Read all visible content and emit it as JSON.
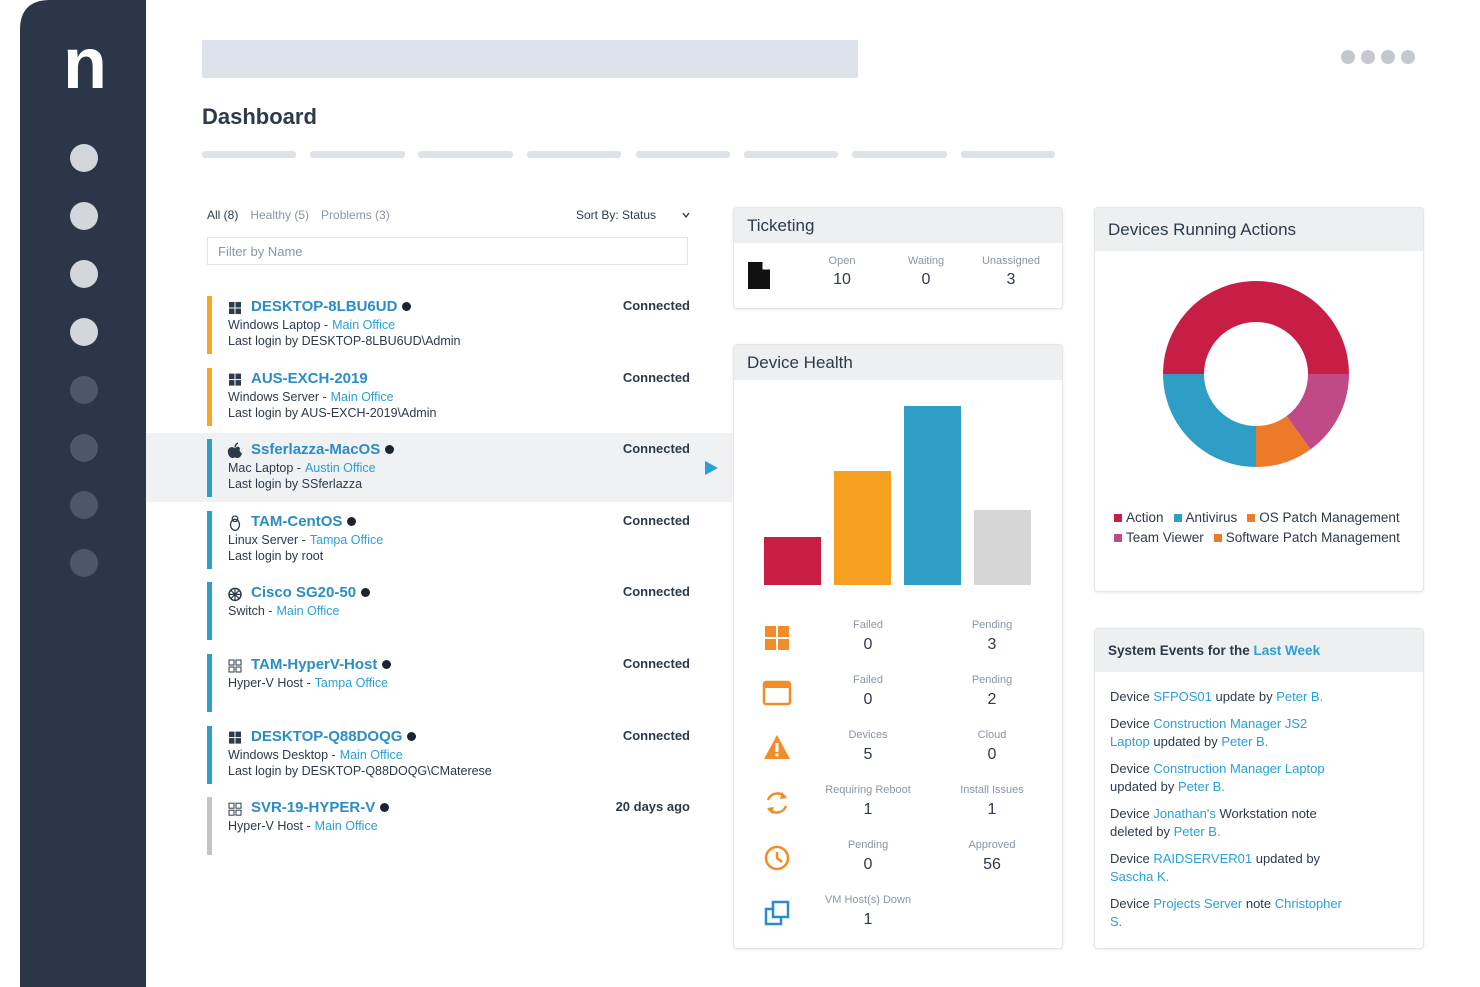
{
  "logo": "n",
  "header": {
    "title": "Dashboard"
  },
  "devices": {
    "filters": [
      "All (8)",
      "Healthy (5)",
      "Problems (3)"
    ],
    "sort": "Sort By: Status",
    "filter_placeholder": "Filter by Name",
    "items": [
      {
        "name": "DESKTOP-8LBU6UD",
        "type": "Windows Laptop -",
        "location": "Main Office",
        "login": "Last login by DESKTOP-8LBU6UD\\Admin",
        "status": "Connected",
        "color": "#f5a623"
      },
      {
        "name": "AUS-EXCH-2019",
        "type": "Windows Server -",
        "location": "Main Office",
        "login": "Last login by AUS-EXCH-2019\\Admin",
        "status": "Connected",
        "color": "#f5a623"
      },
      {
        "name": "Ssferlazza-MacOS",
        "type": "Mac Laptop -",
        "location": "Austin Office",
        "login": "Last login by SSferlazza",
        "status": "Connected",
        "color": "#2e9ec6"
      },
      {
        "name": "TAM-CentOS",
        "type": "Linux Server -",
        "location": "Tampa Office",
        "login": "Last login by root",
        "status": "Connected",
        "color": "#2e9ec6"
      },
      {
        "name": "Cisco SG20-50",
        "type": "Switch -",
        "location": "Main Office",
        "status": "Connected",
        "color": "#2e9ec6"
      },
      {
        "name": "TAM-HyperV-Host",
        "type": "Hyper-V Host -",
        "location": "Tampa Office",
        "status": "Connected",
        "color": "#2e9ec6"
      },
      {
        "name": "DESKTOP-Q88DOQG",
        "type": "Windows Desktop -",
        "location": "Main Office",
        "login": "Last login by DESKTOP-Q88DOQG\\CMaterese",
        "status": "Connected",
        "color": "#2e9ec6"
      },
      {
        "name": "SVR-19-HYPER-V",
        "type": "Hyper-V Host -",
        "location": "Main Office",
        "status": "20 days ago",
        "color": "#c4c4c4"
      }
    ]
  },
  "ticketing": {
    "title": "Ticketing",
    "columns": [
      {
        "label": "Open",
        "value": 10
      },
      {
        "label": "Waiting",
        "value": 0
      },
      {
        "label": "Unassigned",
        "value": 3
      }
    ]
  },
  "device_health": {
    "title": "Device Health",
    "chart": {
      "type": "bar",
      "values": [
        48,
        114,
        179,
        75
      ],
      "colors": [
        "#c81e45",
        "#f5a021",
        "#2e9ec6",
        "#d6d6d6"
      ],
      "ylim": [
        0,
        180
      ]
    },
    "rows": [
      [
        {
          "label": "Failed",
          "value": 0
        },
        {
          "label": "Pending",
          "value": 3
        }
      ],
      [
        {
          "label": "Failed",
          "value": 0
        },
        {
          "label": "Pending",
          "value": 2
        }
      ],
      [
        {
          "label": "Devices",
          "value": 5
        },
        {
          "label": "Cloud",
          "value": 0
        }
      ],
      [
        {
          "label": "Requiring Reboot",
          "value": 1
        },
        {
          "label": "Install Issues",
          "value": 1
        }
      ],
      [
        {
          "label": "Pending",
          "value": 0
        },
        {
          "label": "Approved",
          "value": 56
        }
      ],
      [
        {
          "label": "VM Host(s) Down",
          "value": 1
        }
      ]
    ]
  },
  "devices_running_actions": {
    "title": "Devices Running Actions",
    "chart": {
      "type": "donut",
      "labels": [
        "Action",
        "Antivirus",
        "OS Patch Management",
        "Team Viewer",
        "Software Patch Management"
      ],
      "colors": [
        "#c81e45",
        "#2e9ec6",
        "#ec7a28",
        "#c04a86",
        "#ec7a28"
      ],
      "values": [
        50,
        25,
        10,
        15,
        0
      ]
    }
  },
  "system_events": {
    "title": [
      {
        "text": "System Events for the "
      },
      {
        "text": "Last Week",
        "link": true
      }
    ],
    "events": [
      [
        {
          "text": "Device "
        },
        {
          "text": "SFPOS01",
          "link": true
        },
        {
          "text": " update by "
        },
        {
          "text": "Peter B.",
          "link": true
        }
      ],
      [
        {
          "text": "Device "
        },
        {
          "text": "Construction Manager JS2 Laptop",
          "link": true
        },
        {
          "text": " updated by "
        },
        {
          "text": "Peter B.",
          "link": true
        }
      ],
      [
        {
          "text": "Device "
        },
        {
          "text": "Construction Manager Laptop",
          "link": true
        },
        {
          "text": " updated by "
        },
        {
          "text": "Peter B.",
          "link": true
        }
      ],
      [
        {
          "text": "Device "
        },
        {
          "text": "Jonathan's",
          "link": true
        },
        {
          "text": " Workstation note deleted by "
        },
        {
          "text": "Peter B.",
          "link": true
        }
      ],
      [
        {
          "text": "Device "
        },
        {
          "text": "RAIDSERVER01",
          "link": true
        },
        {
          "text": " updated by "
        },
        {
          "text": "Sascha K.",
          "link": true
        }
      ],
      [
        {
          "text": "Device "
        },
        {
          "text": "Projects Server",
          "link": true
        },
        {
          "text": " note "
        },
        {
          "text": "Christopher S.",
          "link": true
        }
      ]
    ]
  }
}
